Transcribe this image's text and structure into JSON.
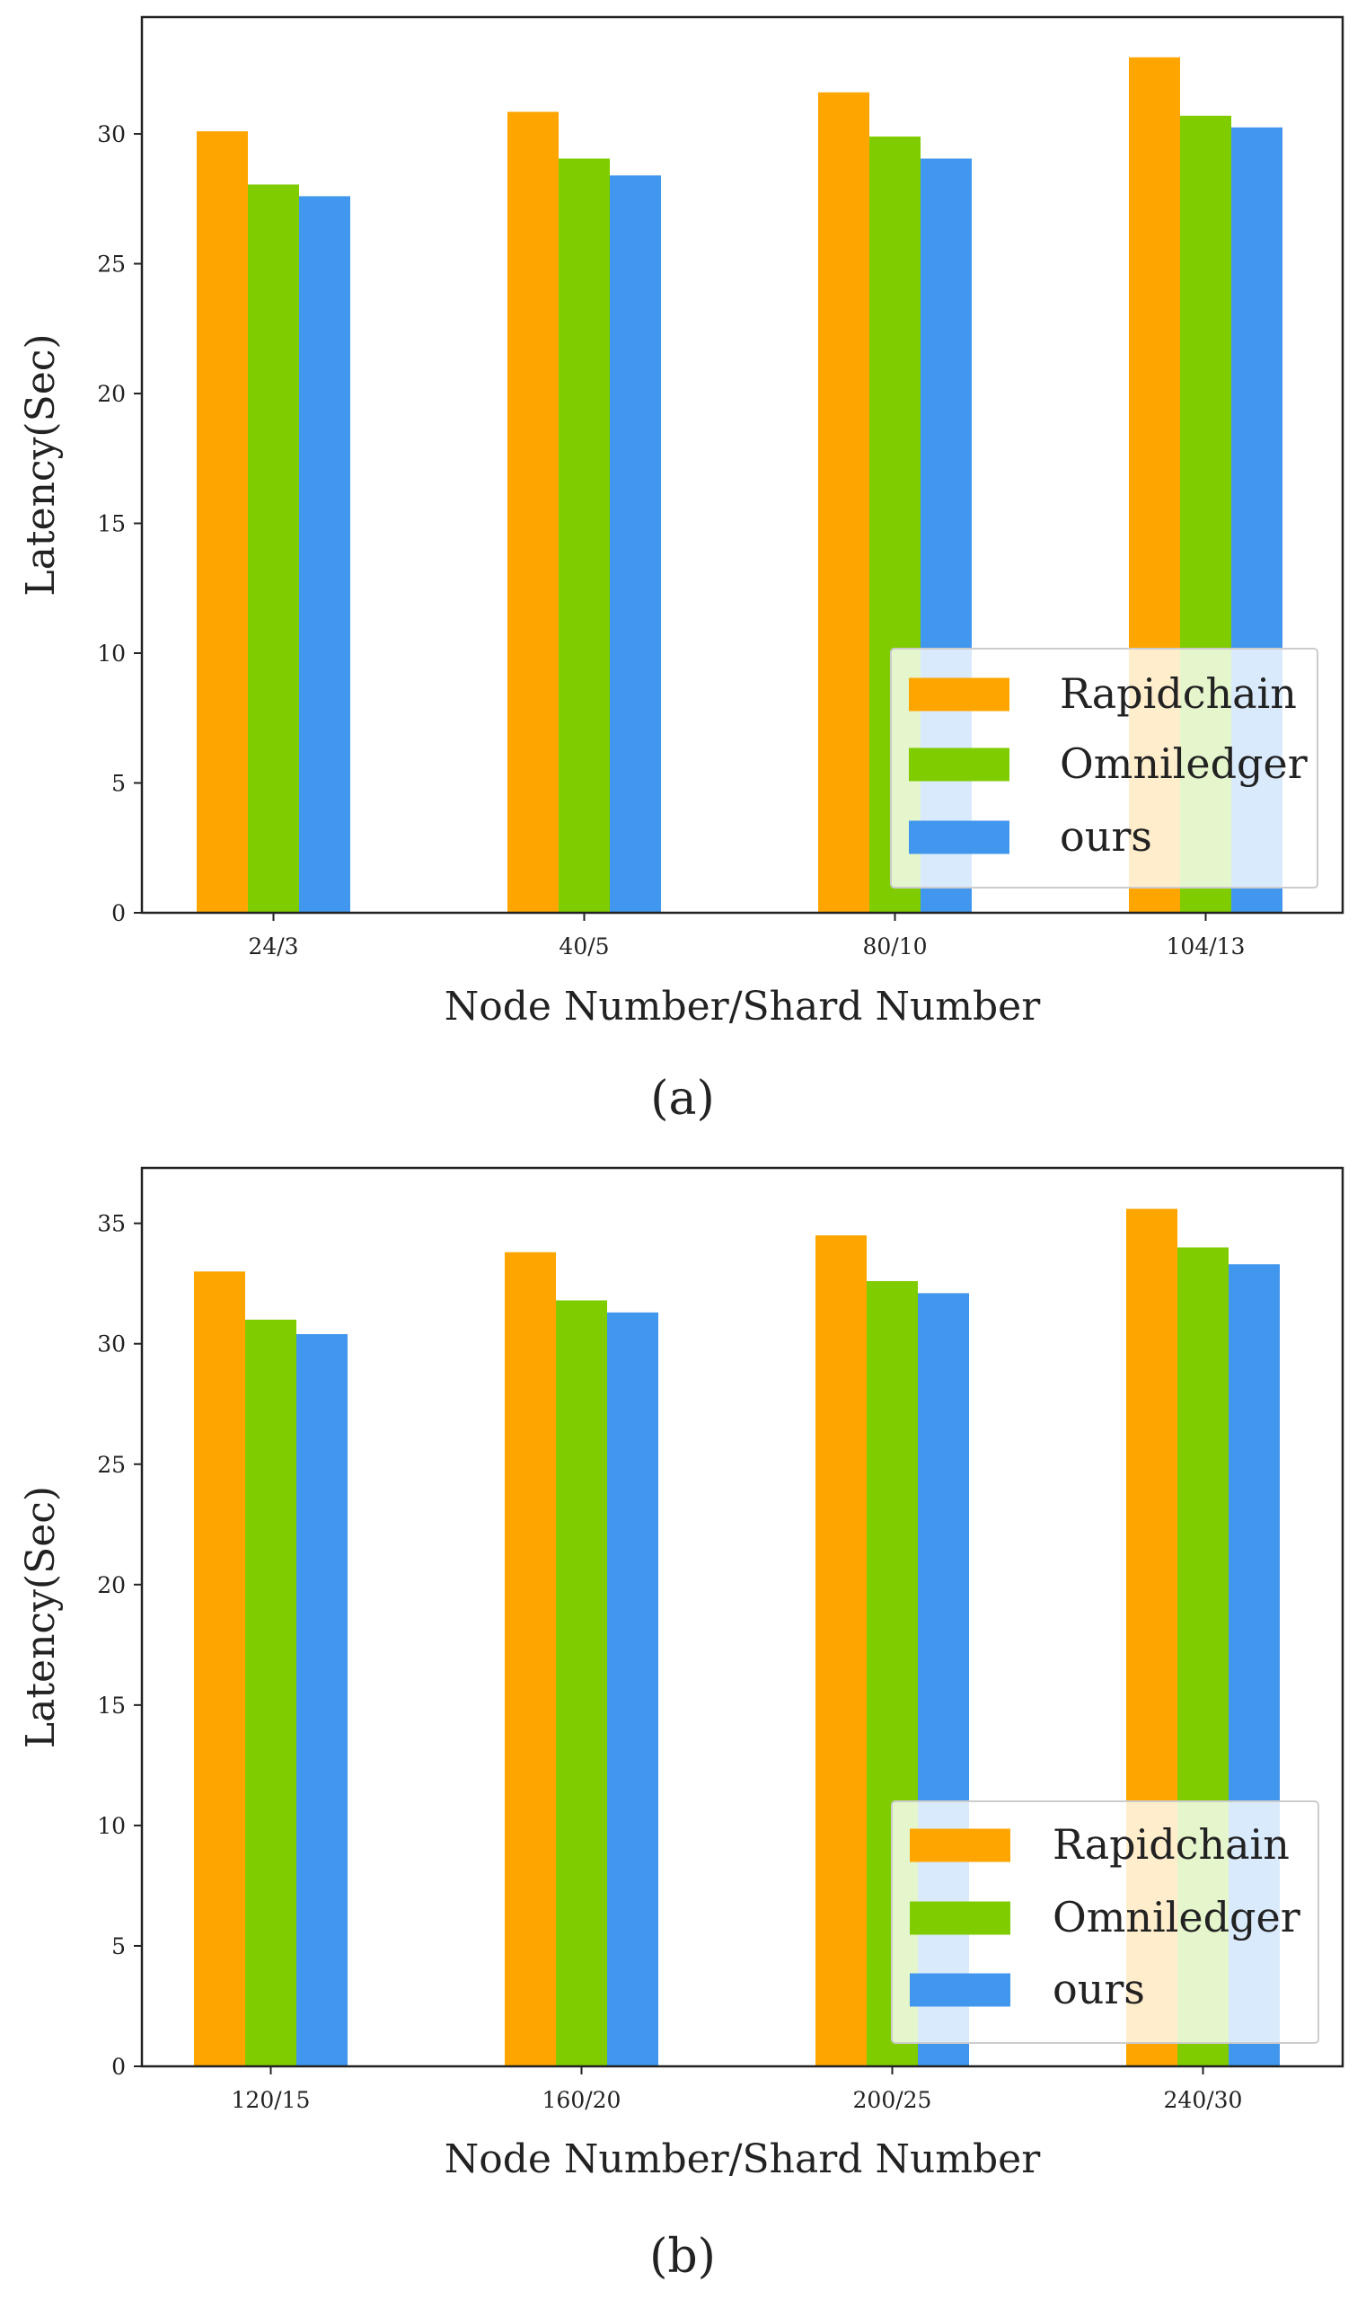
{
  "chart_data": [
    {
      "type": "bar",
      "caption": "(a)",
      "categories": [
        "24/3",
        "40/5",
        "80/10",
        "104/13"
      ],
      "series": [
        {
          "name": "Rapidchain",
          "color": "#ffa500",
          "values": [
            30.1,
            30.85,
            31.6,
            32.95
          ]
        },
        {
          "name": "Omniledger",
          "color": "#7fcc00",
          "values": [
            28.05,
            29.05,
            29.9,
            30.7
          ]
        },
        {
          "name": "ours",
          "color": "#4196ee",
          "values": [
            27.6,
            28.4,
            29.05,
            30.25
          ]
        }
      ],
      "xlabel": "Node Number/Shard Number",
      "ylabel": "Latency(Sec)",
      "ylim": [
        0,
        34.5
      ],
      "yticks": [
        "0",
        "5",
        "10",
        "15",
        "20",
        "25",
        "30"
      ],
      "legend_position": "lower-right"
    },
    {
      "type": "bar",
      "caption": "(b)",
      "categories": [
        "120/15",
        "160/20",
        "200/25",
        "240/30"
      ],
      "series": [
        {
          "name": "Rapidchain",
          "color": "#ffa500",
          "values": [
            33.0,
            33.8,
            34.5,
            35.6
          ]
        },
        {
          "name": "Omniledger",
          "color": "#7fcc00",
          "values": [
            31.0,
            31.8,
            32.6,
            34.0
          ]
        },
        {
          "name": "ours",
          "color": "#4196ee",
          "values": [
            30.4,
            31.3,
            32.1,
            33.3
          ]
        }
      ],
      "xlabel": "Node Number/Shard Number",
      "ylabel": "Latency(Sec)",
      "ylim": [
        0,
        37.3
      ],
      "yticks": [
        "0",
        "5",
        "10",
        "15",
        "20",
        "25",
        "30",
        "35"
      ],
      "legend_position": "lower-right"
    }
  ]
}
